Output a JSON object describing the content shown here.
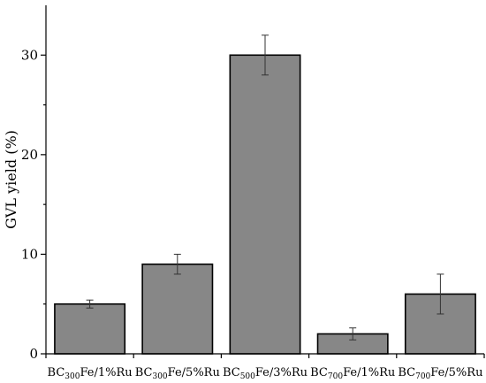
{
  "chart_data": {
    "type": "bar",
    "title": "",
    "xlabel": "",
    "ylabel": "GVL yield (%)",
    "ylim": [
      0,
      35
    ],
    "yticks": [
      0,
      10,
      20,
      30
    ],
    "grid": false,
    "bar_color": "#878787",
    "categories": [
      {
        "prefix": "BC",
        "sub": "300",
        "suffix": "Fe/1%Ru"
      },
      {
        "prefix": "BC",
        "sub": "300",
        "suffix": "Fe/5%Ru"
      },
      {
        "prefix": "BC",
        "sub": "500",
        "suffix": "Fe/3%Ru"
      },
      {
        "prefix": "BC",
        "sub": "700",
        "suffix": "Fe/1%Ru"
      },
      {
        "prefix": "BC",
        "sub": "700",
        "suffix": "Fe/5%Ru"
      }
    ],
    "values": [
      5,
      9,
      30,
      2,
      6
    ],
    "errors": [
      0.4,
      1,
      2,
      0.6,
      2
    ]
  }
}
